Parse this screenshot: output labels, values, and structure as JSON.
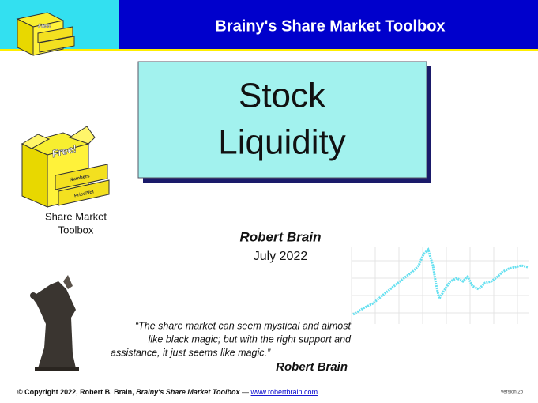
{
  "header": {
    "title": "Brainy's Share Market Toolbox"
  },
  "slide": {
    "title_lines": [
      "Stock",
      "Liquidity"
    ]
  },
  "toolbox": {
    "box_label": "Free!",
    "drawer_labels": [
      "Numbers",
      "Price/Vol"
    ],
    "caption_lines": [
      "Share Market",
      "Toolbox"
    ]
  },
  "author": {
    "name": "Robert Brain",
    "date": "July 2022"
  },
  "quote": {
    "lines": [
      "“The share market can seem mystical and almost",
      "like black magic; but with the right support and",
      "assistance, it just seems like magic.”"
    ],
    "author": "Robert Brain"
  },
  "footer": {
    "copyright": "© Copyright 2022, Robert B. Brain, ",
    "product": "Brainy's Share Market Toolbox",
    "separator": " — ",
    "link": "www.robertbrain.com",
    "version": "Version 2b"
  }
}
